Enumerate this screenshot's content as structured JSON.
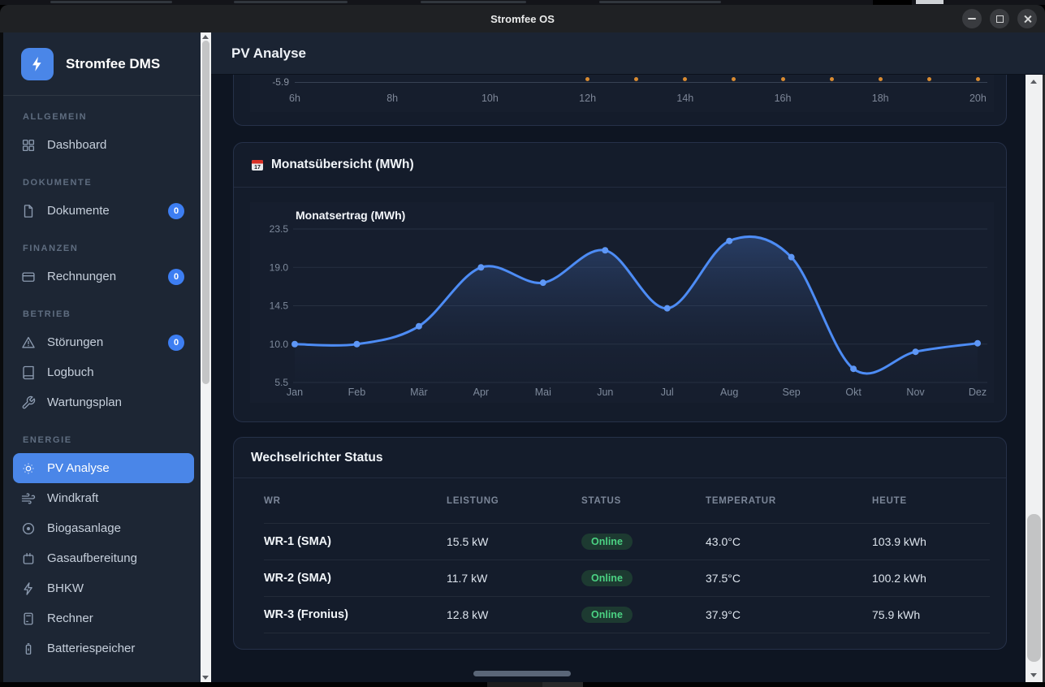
{
  "window": {
    "title": "Stromfee OS",
    "buttons": [
      "minimize",
      "maximize",
      "close"
    ]
  },
  "sidebar": {
    "brand": "Stromfee DMS",
    "brand_icon": "lightning-bolt-icon",
    "sections": [
      {
        "label": "ALLGEMEIN",
        "items": [
          {
            "label": "Dashboard",
            "icon": "grid-icon"
          }
        ]
      },
      {
        "label": "DOKUMENTE",
        "items": [
          {
            "label": "Dokumente",
            "icon": "document-icon",
            "badge": "0"
          }
        ]
      },
      {
        "label": "FINANZEN",
        "items": [
          {
            "label": "Rechnungen",
            "icon": "credit-card-icon",
            "badge": "0"
          }
        ]
      },
      {
        "label": "BETRIEB",
        "items": [
          {
            "label": "Störungen",
            "icon": "warning-triangle-icon",
            "badge": "0"
          },
          {
            "label": "Logbuch",
            "icon": "book-icon"
          },
          {
            "label": "Wartungsplan",
            "icon": "wrench-icon"
          }
        ]
      },
      {
        "label": "ENERGIE",
        "items": [
          {
            "label": "PV Analyse",
            "icon": "sun-icon",
            "active": true
          },
          {
            "label": "Windkraft",
            "icon": "wind-icon"
          },
          {
            "label": "Biogasanlage",
            "icon": "biogas-icon"
          },
          {
            "label": "Gasaufbereitung",
            "icon": "gas-container-icon"
          },
          {
            "label": "BHKW",
            "icon": "bolt-icon"
          },
          {
            "label": "Rechner",
            "icon": "calculator-icon"
          },
          {
            "label": "Batteriespeicher",
            "icon": "battery-icon"
          }
        ]
      }
    ]
  },
  "header": {
    "title": "PV Analyse"
  },
  "month_card": {
    "title": "Monatsübersicht (MWh)",
    "icon": "calendar-icon",
    "calendar_day": "17"
  },
  "chart_data": [
    {
      "type": "line",
      "title": "Monatsertrag (MWh)",
      "categories": [
        "Jan",
        "Feb",
        "Mär",
        "Apr",
        "Mai",
        "Jun",
        "Jul",
        "Aug",
        "Sep",
        "Okt",
        "Nov",
        "Dez"
      ],
      "values": [
        10.0,
        10.0,
        12.1,
        19.0,
        17.2,
        21.0,
        14.2,
        22.1,
        20.2,
        7.1,
        9.1,
        10.1
      ],
      "ylim": [
        5.5,
        23.5
      ],
      "y_ticks": [
        23.5,
        19.0,
        14.5,
        10.0,
        5.5
      ],
      "grid": true,
      "legend": "none",
      "line_color": "#4d8cf5",
      "point_markers": true,
      "area_fill": true
    },
    {
      "type": "line",
      "note": "clipped chart, only bottom axis visible",
      "x_ticks": [
        "6h",
        "8h",
        "10h",
        "12h",
        "14h",
        "16h",
        "18h",
        "20h"
      ],
      "visible_y_tick": "-5.9",
      "dot_count": 9,
      "dot_color": "#d98b31"
    }
  ],
  "inverter_card": {
    "title": "Wechselrichter Status",
    "columns": [
      "WR",
      "LEISTUNG",
      "STATUS",
      "TEMPERATUR",
      "HEUTE"
    ],
    "rows": [
      [
        "WR-1 (SMA)",
        "15.5 kW",
        "Online",
        "43.0°C",
        "103.9 kWh"
      ],
      [
        "WR-2 (SMA)",
        "11.7 kW",
        "Online",
        "37.5°C",
        "100.2 kWh"
      ],
      [
        "WR-3 (Fronius)",
        "12.8 kW",
        "Online",
        "37.9°C",
        "75.9 kWh"
      ]
    ]
  },
  "colors": {
    "accent_blue": "#4a86e8",
    "chart_line": "#4d8cf5",
    "online_text": "#4bd283",
    "online_bg": "#1d3a31",
    "orange_dot": "#d98b31",
    "badge_blue": "#3d7ef2"
  }
}
